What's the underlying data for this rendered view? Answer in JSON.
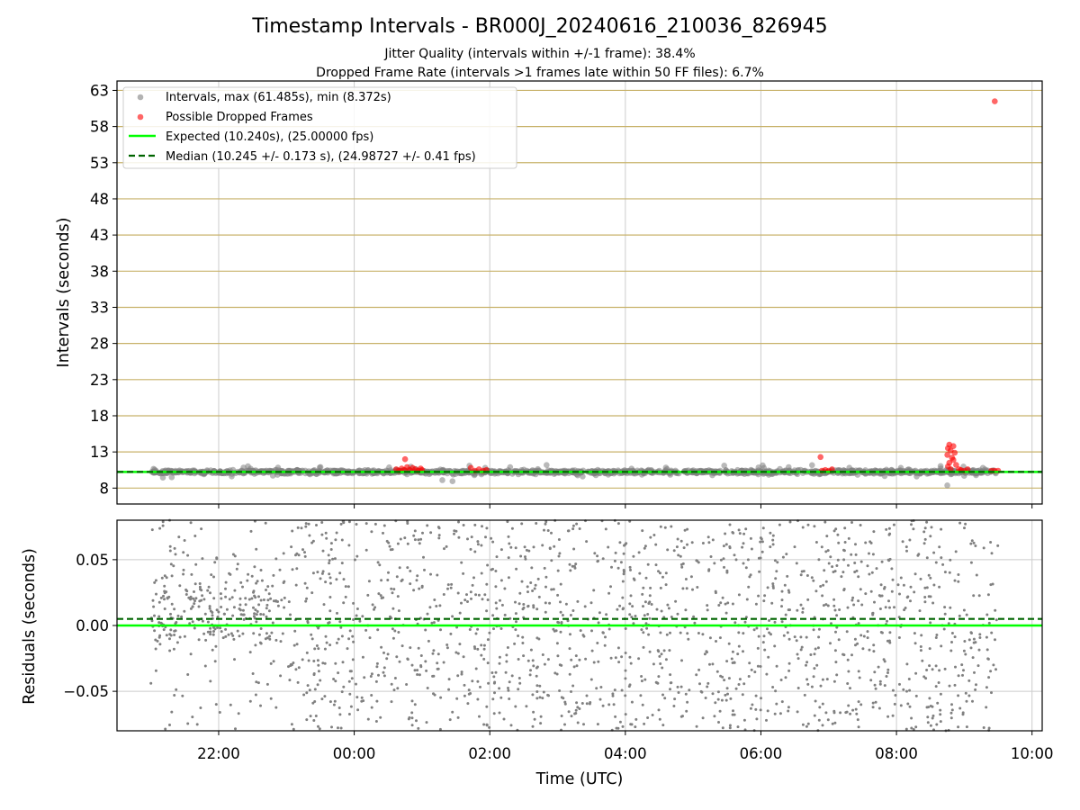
{
  "colors": {
    "intervals": "#808080",
    "dropped": "#ff0000",
    "expected": "#00ff00",
    "median": "#006400",
    "ygrid_top": "#c8b26a",
    "grid": "#cccccc",
    "residuals": "#808080"
  },
  "header": {
    "title": "Timestamp Intervals - BR000J_20240616_210036_826945",
    "subtitle1": "Jitter Quality (intervals within +/-1 frame): 38.4%",
    "subtitle2": "Dropped Frame Rate (intervals >1 frames late within 50 FF files): 6.7%"
  },
  "chart_data": [
    {
      "type": "scatter",
      "ylabel": "Intervals (seconds)",
      "yticks": [
        "63",
        "58",
        "53",
        "48",
        "43",
        "38",
        "33",
        "28",
        "23",
        "18",
        "13",
        "8"
      ],
      "ylim": [
        5.8,
        64.3
      ],
      "xlim_hours": [
        20.5,
        34.15
      ],
      "xgrid_hours": [
        22,
        24,
        26,
        28,
        30,
        32,
        34
      ],
      "legend_position": "upper-left",
      "legend": {
        "intervals": "Intervals, max (61.485s), min (8.372s)",
        "dropped": "Possible Dropped Frames",
        "expected": "Expected (10.240s), (25.00000 fps)",
        "median": "Median (10.245 +/- 0.173 s), (24.98727 +/- 0.41 fps)"
      },
      "expected": 10.24,
      "median": 10.245,
      "intervals_summary": {
        "x_start_hours": 21.0,
        "x_end_hours": 33.5,
        "typical_value": 10.24,
        "max": 61.485,
        "min": 8.372
      },
      "series": [
        {
          "name": "Possible Dropped Frames",
          "points_hours_seconds": [
            [
              24.75,
              12.0
            ],
            [
              24.62,
              10.6
            ],
            [
              24.66,
              10.4
            ],
            [
              24.7,
              10.7
            ],
            [
              24.74,
              10.5
            ],
            [
              24.78,
              10.9
            ],
            [
              24.82,
              10.5
            ],
            [
              24.86,
              10.8
            ],
            [
              24.9,
              10.6
            ],
            [
              24.94,
              10.4
            ],
            [
              24.98,
              10.7
            ],
            [
              25.0,
              10.5
            ],
            [
              25.72,
              10.8
            ],
            [
              25.78,
              10.4
            ],
            [
              25.84,
              10.6
            ],
            [
              25.9,
              10.4
            ],
            [
              25.95,
              10.5
            ],
            [
              30.88,
              12.3
            ],
            [
              30.9,
              10.4
            ],
            [
              30.95,
              10.5
            ],
            [
              31.0,
              10.4
            ],
            [
              31.05,
              10.6
            ],
            [
              32.75,
              12.6
            ],
            [
              32.76,
              13.5
            ],
            [
              32.78,
              14.0
            ],
            [
              32.8,
              13.2
            ],
            [
              32.82,
              12.2
            ],
            [
              32.84,
              13.8
            ],
            [
              32.86,
              12.9
            ],
            [
              32.78,
              11.5
            ],
            [
              32.76,
              11.0
            ],
            [
              32.8,
              10.6
            ],
            [
              32.84,
              11.9
            ],
            [
              32.88,
              11.2
            ],
            [
              32.92,
              10.6
            ],
            [
              32.95,
              10.5
            ],
            [
              33.0,
              10.4
            ],
            [
              33.05,
              10.6
            ],
            [
              33.4,
              10.4
            ],
            [
              33.45,
              10.4
            ],
            [
              33.5,
              10.4
            ],
            [
              33.45,
              61.485
            ]
          ]
        }
      ]
    },
    {
      "type": "scatter",
      "ylabel": "Residuals (seconds)",
      "xlabel": "Time (UTC)",
      "yticks": [
        "0.05",
        "0.00",
        "−0.05"
      ],
      "ylim": [
        -0.08,
        0.08
      ],
      "xticks": [
        "22:00",
        "00:00",
        "02:00",
        "04:00",
        "06:00",
        "08:00",
        "10:00"
      ],
      "expected_residual": 0.0,
      "median_residual": 0.005,
      "points_summary": {
        "x_start_hours": 21.0,
        "x_end_hours": 33.5,
        "spread": "scattered between -0.08 and 0.08, denser near 0.02 before 23:00"
      }
    }
  ]
}
